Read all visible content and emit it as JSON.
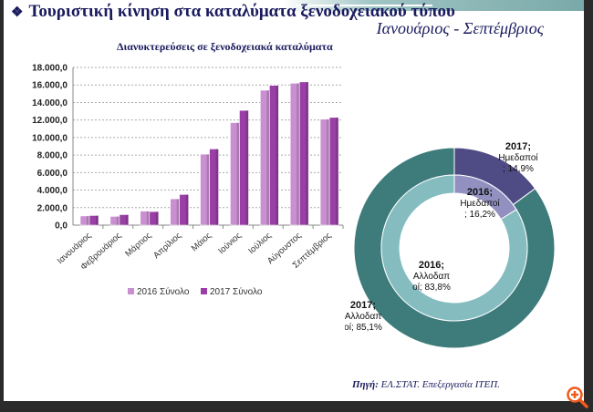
{
  "header": {
    "bullet_icon": "diamond-bullet-icon",
    "title": "Τουριστική κίνηση στα καταλύματα ξενοδοχειακού τύπου",
    "subtitle": "Ιανουάριος - Σεπτέμβριος"
  },
  "source": {
    "label": "Πηγή",
    "text": "ΕΛ.ΣΤΑΤ. Επεξεργασία ΙΤΕΠ."
  },
  "zoom_icon": "zoom-in-icon",
  "chart_data": [
    {
      "type": "bar",
      "title": "Διανυκτερεύσεις σε ξενοδοχειακά καταλύματα",
      "categories": [
        "Ιανουάριος",
        "Φεβρουάριος",
        "Μάρτιος",
        "Απρίλιος",
        "Μάιος",
        "Ιούνιος",
        "Ιούλιος",
        "Αύγουστος",
        "Σεπτέμβριος"
      ],
      "series": [
        {
          "name": "2016 Σύνολο",
          "color": "#c98fd0",
          "values": [
            1050,
            1000,
            1600,
            3000,
            8100,
            11700,
            15400,
            16200,
            12100
          ]
        },
        {
          "name": "2017 Σύνολο",
          "color": "#9a3fa6",
          "values": [
            1100,
            1200,
            1550,
            3500,
            8700,
            13100,
            15950,
            16350,
            12300
          ]
        }
      ],
      "yticks": [
        "0,0",
        "2.000,0",
        "4.000,0",
        "6.000,0",
        "8.000,0",
        "10.000,0",
        "12.000,0",
        "14.000,0",
        "16.000,0",
        "18.000,0"
      ],
      "ylim": [
        0,
        18000
      ],
      "grid": true,
      "legend": "bottom"
    },
    {
      "type": "pie",
      "rings": [
        {
          "year": "2017",
          "slices": [
            {
              "label": "2017; Ημεδαποί ; 14,9%",
              "value": 14.9,
              "color": "#4f4b85"
            },
            {
              "label": "2017; Αλλοδαποί; 85,1%",
              "value": 85.1,
              "color": "#3e7b7b"
            }
          ]
        },
        {
          "year": "2016",
          "slices": [
            {
              "label": "2016; Ημεδαποί ; 16,2%",
              "value": 16.2,
              "color": "#9290c0"
            },
            {
              "label": "2016; Αλλοδαποί; 83,8%",
              "value": 83.8,
              "color": "#84bcc0"
            }
          ]
        }
      ],
      "labels": {
        "o1": [
          "2017;",
          "Ημεδαποί",
          "; 14,9%"
        ],
        "i1": [
          "2016;",
          "Ημεδαποί",
          "; 16,2%"
        ],
        "i2": [
          "2016;",
          "Αλλοδαπ",
          "οί; 83,8%"
        ],
        "o2": [
          "2017;",
          "Αλλοδαπ",
          "οί; 85,1%"
        ]
      }
    }
  ]
}
